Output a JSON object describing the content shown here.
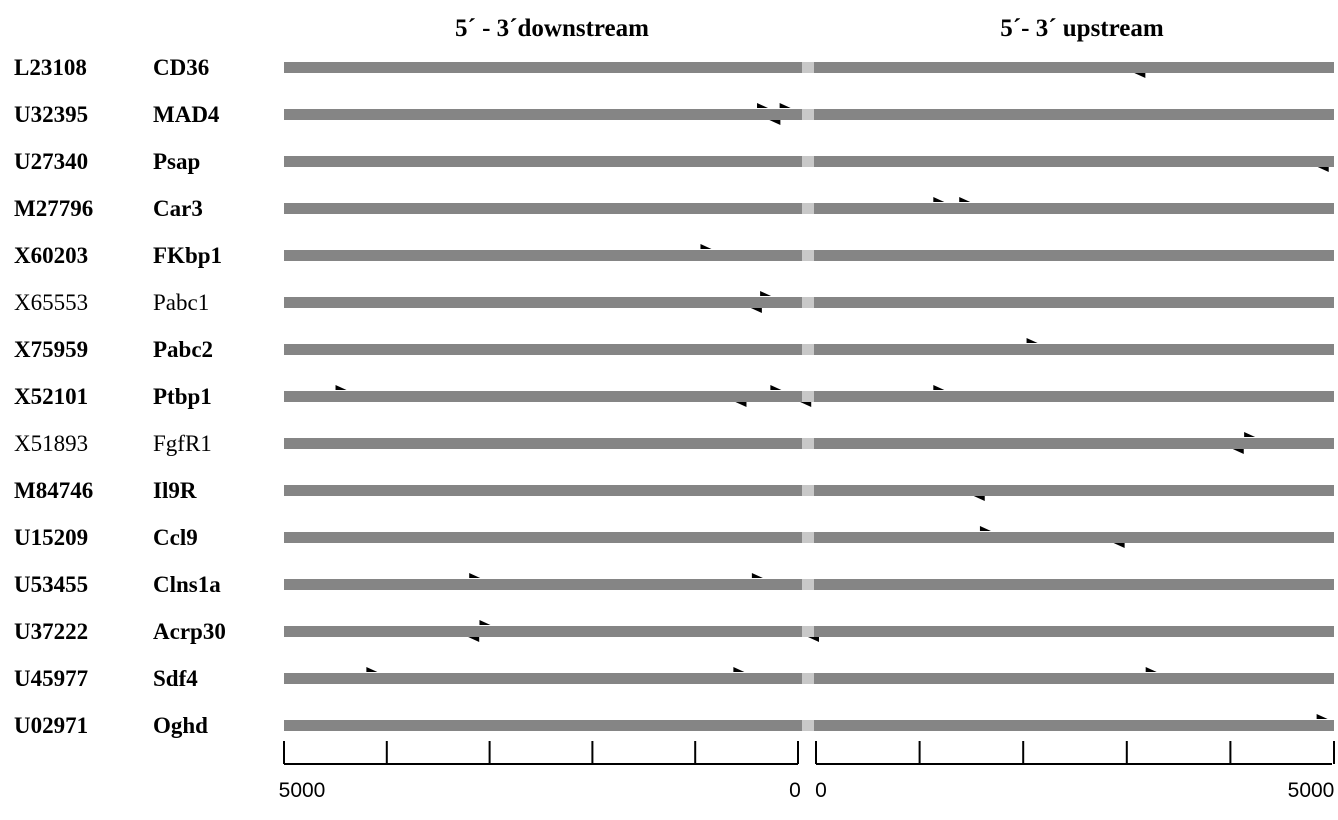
{
  "headers": {
    "downstream": "5´ - 3´downstream",
    "upstream": "5´- 3´ upstream"
  },
  "axis": {
    "downstream_labels": [
      "5000",
      "0"
    ],
    "upstream_labels": [
      "0",
      "5000"
    ],
    "range": [
      0,
      5000
    ],
    "major_tick_step": 1000
  },
  "colors": {
    "bar": "#858585",
    "center_gap": "#c8c8c8",
    "marker": "#000000"
  },
  "rows": [
    {
      "accession": "L23108",
      "gene": "CD36",
      "bold": true,
      "markers": [
        {
          "region": "upstream",
          "pos": 3150,
          "dir": "down"
        }
      ]
    },
    {
      "accession": "U32395",
      "gene": "MAD4",
      "bold": true,
      "markers": [
        {
          "region": "downstream",
          "pos": 350,
          "dir": "up"
        },
        {
          "region": "downstream",
          "pos": 130,
          "dir": "up"
        },
        {
          "region": "downstream",
          "pos": 220,
          "dir": "down"
        }
      ]
    },
    {
      "accession": "U27340",
      "gene": "Psap",
      "bold": true,
      "markers": [
        {
          "region": "upstream",
          "pos": 4920,
          "dir": "down"
        }
      ]
    },
    {
      "accession": "M27796",
      "gene": "Car3",
      "bold": true,
      "markers": [
        {
          "region": "upstream",
          "pos": 1200,
          "dir": "up"
        },
        {
          "region": "upstream",
          "pos": 1450,
          "dir": "up"
        }
      ]
    },
    {
      "accession": "X60203",
      "gene": "FKbp1",
      "bold": true,
      "markers": [
        {
          "region": "downstream",
          "pos": 900,
          "dir": "up"
        }
      ]
    },
    {
      "accession": "X65553",
      "gene": "Pabc1",
      "bold": false,
      "markers": [
        {
          "region": "downstream",
          "pos": 320,
          "dir": "up"
        },
        {
          "region": "downstream",
          "pos": 400,
          "dir": "down"
        }
      ]
    },
    {
      "accession": "X75959",
      "gene": "Pabc2",
      "bold": true,
      "markers": [
        {
          "region": "upstream",
          "pos": 2100,
          "dir": "up"
        }
      ]
    },
    {
      "accession": "X52101",
      "gene": "Ptbp1",
      "bold": true,
      "markers": [
        {
          "region": "downstream",
          "pos": 4450,
          "dir": "up"
        },
        {
          "region": "downstream",
          "pos": 220,
          "dir": "up"
        },
        {
          "region": "downstream",
          "pos": 550,
          "dir": "down"
        },
        {
          "region": "downstream",
          "pos": -80,
          "dir": "down"
        },
        {
          "region": "upstream",
          "pos": 1200,
          "dir": "up"
        }
      ]
    },
    {
      "accession": "X51893",
      "gene": "FgfR1",
      "bold": false,
      "markers": [
        {
          "region": "upstream",
          "pos": 4200,
          "dir": "up"
        },
        {
          "region": "upstream",
          "pos": 4100,
          "dir": "down"
        }
      ]
    },
    {
      "accession": "M84746",
      "gene": "Il9R",
      "bold": true,
      "markers": [
        {
          "region": "upstream",
          "pos": 1600,
          "dir": "down"
        }
      ]
    },
    {
      "accession": "U15209",
      "gene": "Ccl9",
      "bold": true,
      "markers": [
        {
          "region": "upstream",
          "pos": 1650,
          "dir": "up"
        },
        {
          "region": "upstream",
          "pos": 2950,
          "dir": "down"
        }
      ]
    },
    {
      "accession": "U53455",
      "gene": "Clns1a",
      "bold": true,
      "markers": [
        {
          "region": "downstream",
          "pos": 3150,
          "dir": "up"
        },
        {
          "region": "downstream",
          "pos": 400,
          "dir": "up"
        }
      ]
    },
    {
      "accession": "U37222",
      "gene": "Acrp30",
      "bold": true,
      "markers": [
        {
          "region": "downstream",
          "pos": 3050,
          "dir": "up"
        },
        {
          "region": "downstream",
          "pos": 3150,
          "dir": "down"
        },
        {
          "region": "upstream",
          "pos": 0,
          "dir": "down"
        }
      ]
    },
    {
      "accession": "U45977",
      "gene": "Sdf4",
      "bold": true,
      "markers": [
        {
          "region": "downstream",
          "pos": 4150,
          "dir": "up"
        },
        {
          "region": "downstream",
          "pos": 580,
          "dir": "up"
        },
        {
          "region": "upstream",
          "pos": 3250,
          "dir": "up"
        }
      ]
    },
    {
      "accession": "U02971",
      "gene": "Oghd",
      "bold": true,
      "markers": [
        {
          "region": "upstream",
          "pos": 4900,
          "dir": "up"
        }
      ]
    }
  ]
}
